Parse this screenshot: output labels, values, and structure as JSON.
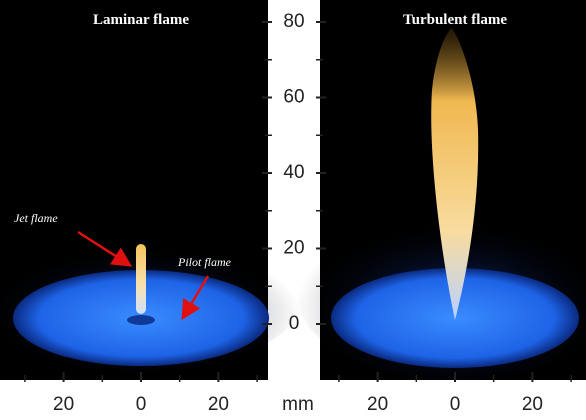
{
  "panels": [
    {
      "title": "Laminar flame",
      "annotations": [
        "Jet flame",
        "Pilot flame"
      ]
    },
    {
      "title": "Turbulent flame"
    }
  ],
  "vertical_axis": {
    "ticks": [
      0,
      20,
      40,
      60,
      80
    ]
  },
  "horizontal_axes": [
    {
      "ticks": [
        {
          "value": -20,
          "label": "20"
        },
        0,
        {
          "value": 20,
          "label": "20"
        }
      ]
    },
    {
      "ticks": [
        {
          "value": -20,
          "label": "20"
        },
        0,
        {
          "value": 20,
          "label": "20"
        }
      ]
    }
  ],
  "unit": "mm"
}
